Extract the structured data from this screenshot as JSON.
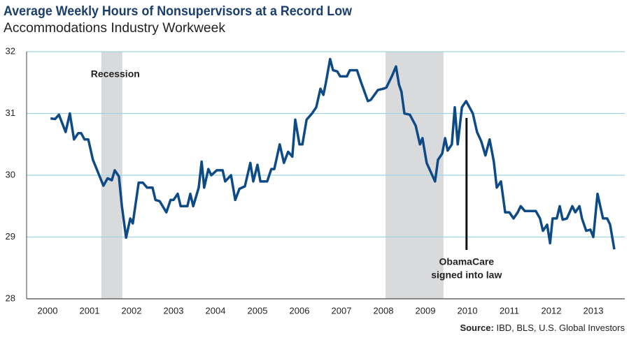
{
  "chart_data": {
    "type": "line",
    "title": "Average Weekly Hours of Nonsupervisors at a Record Low",
    "subtitle": "Accommodations Industry Workweek",
    "source_label": "Source:",
    "source": "IBD, BLS, U.S. Global Investors",
    "xlim": [
      1999.5,
      2013.75
    ],
    "xticks": [
      2000,
      2001,
      2002,
      2003,
      2004,
      2005,
      2006,
      2007,
      2008,
      2009,
      2010,
      2011,
      2012,
      2013
    ],
    "ylim": [
      28,
      32
    ],
    "yticks": [
      28,
      29,
      30,
      31,
      32
    ],
    "grid": true,
    "shaded_regions": [
      {
        "label": "Recession",
        "range": [
          2001.28,
          2001.78
        ]
      },
      {
        "range": [
          2008.05,
          2009.43
        ]
      }
    ],
    "annotation": {
      "text": [
        "ObamaCare",
        "signed into law"
      ],
      "x": 2009.98
    },
    "x": [
      2000.07,
      2000.18,
      2000.27,
      2000.43,
      2000.53,
      2000.63,
      2000.73,
      2000.8,
      2000.88,
      2000.97,
      2001.08,
      2001.2,
      2001.33,
      2001.43,
      2001.53,
      2001.6,
      2001.7,
      2001.77,
      2001.87,
      2001.97,
      2002.03,
      2002.17,
      2002.27,
      2002.37,
      2002.5,
      2002.57,
      2002.67,
      2002.83,
      2002.93,
      2003.0,
      2003.1,
      2003.17,
      2003.33,
      2003.4,
      2003.47,
      2003.6,
      2003.67,
      2003.73,
      2003.83,
      2003.9,
      2004.03,
      2004.17,
      2004.23,
      2004.37,
      2004.47,
      2004.57,
      2004.7,
      2004.83,
      2004.9,
      2005.0,
      2005.07,
      2005.23,
      2005.33,
      2005.4,
      2005.53,
      2005.63,
      2005.73,
      2005.83,
      2005.9,
      2006.0,
      2006.07,
      2006.17,
      2006.3,
      2006.4,
      2006.5,
      2006.57,
      2006.63,
      2006.73,
      2006.8,
      2006.9,
      2006.97,
      2007.13,
      2007.2,
      2007.37,
      2007.47,
      2007.63,
      2007.7,
      2007.87,
      2008.0,
      2008.07,
      2008.2,
      2008.3,
      2008.37,
      2008.43,
      2008.5,
      2008.63,
      2008.77,
      2008.87,
      2008.93,
      2009.03,
      2009.23,
      2009.3,
      2009.4,
      2009.47,
      2009.53,
      2009.63,
      2009.7,
      2009.77,
      2009.87,
      2009.97,
      2010.13,
      2010.23,
      2010.33,
      2010.43,
      2010.53,
      2010.63,
      2010.7,
      2010.8,
      2010.9,
      2011.0,
      2011.1,
      2011.2,
      2011.27,
      2011.37,
      2011.63,
      2011.73,
      2011.8,
      2011.9,
      2011.97,
      2012.03,
      2012.13,
      2012.2,
      2012.27,
      2012.37,
      2012.5,
      2012.57,
      2012.67,
      2012.73,
      2012.83,
      2012.93,
      2013.0,
      2013.1,
      2013.23,
      2013.33,
      2013.4,
      2013.5
    ],
    "series": [
      {
        "color": "#0d4a86",
        "values": [
          30.92,
          30.91,
          30.98,
          30.7,
          31.0,
          30.58,
          30.68,
          30.68,
          30.58,
          30.58,
          30.25,
          30.05,
          29.83,
          29.95,
          29.92,
          30.08,
          29.98,
          29.5,
          28.99,
          29.3,
          29.22,
          29.88,
          29.88,
          29.8,
          29.8,
          29.6,
          29.58,
          29.4,
          29.6,
          29.6,
          29.7,
          29.5,
          29.5,
          29.7,
          29.5,
          29.8,
          30.22,
          29.8,
          30.1,
          30.0,
          30.08,
          30.08,
          29.9,
          30.0,
          29.6,
          29.78,
          29.82,
          30.2,
          29.9,
          30.17,
          29.9,
          29.9,
          30.1,
          30.1,
          30.5,
          30.2,
          30.38,
          30.3,
          30.9,
          30.5,
          30.5,
          30.9,
          31.0,
          31.1,
          31.4,
          31.3,
          31.5,
          31.88,
          31.7,
          31.68,
          31.6,
          31.6,
          31.7,
          31.7,
          31.5,
          31.2,
          31.22,
          31.38,
          31.4,
          31.42,
          31.6,
          31.76,
          31.47,
          31.35,
          31.0,
          30.98,
          30.8,
          30.5,
          30.6,
          30.2,
          29.9,
          30.25,
          30.35,
          30.6,
          30.4,
          30.5,
          31.1,
          30.5,
          31.1,
          31.2,
          31.0,
          30.7,
          30.55,
          30.32,
          30.58,
          30.22,
          29.8,
          29.9,
          29.4,
          29.4,
          29.3,
          29.4,
          29.5,
          29.42,
          29.42,
          29.3,
          29.1,
          29.2,
          28.9,
          29.3,
          29.3,
          29.5,
          29.28,
          29.3,
          29.5,
          29.4,
          29.5,
          29.3,
          29.1,
          29.12,
          29.0,
          29.7,
          29.3,
          29.3,
          29.2,
          28.8
        ]
      }
    ]
  }
}
